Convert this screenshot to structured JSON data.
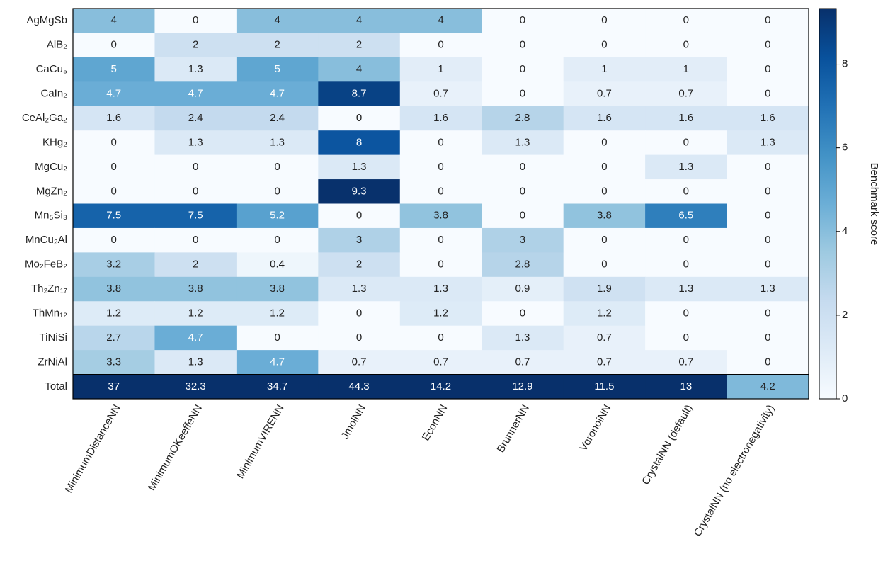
{
  "chart_data": {
    "type": "heatmap",
    "rows": [
      "AgMgSb",
      "AlB₂",
      "CaCu₅",
      "CaIn₂",
      "CeAl₂Ga₂",
      "KHg₂",
      "MgCu₂",
      "MgZn₂",
      "Mn₅Si₃",
      "MnCu₂Al",
      "Mo₂FeB₂",
      "Th₂Zn₁₇",
      "ThMn₁₂",
      "TiNiSi",
      "ZrNiAl",
      "Total"
    ],
    "columns": [
      "MinimumDistanceNN",
      "MinimumOKeeffeNN",
      "MinimumVIRENN",
      "JmolNN",
      "EconNN",
      "BrunnerNN",
      "VoronoiNN",
      "CrystalNN (default)",
      "CrystalNN (no electronegativity)"
    ],
    "values": [
      [
        4,
        0,
        4,
        4,
        4,
        0,
        0,
        0,
        0
      ],
      [
        0,
        2,
        2,
        2,
        0,
        0,
        0,
        0,
        0
      ],
      [
        5,
        1.3,
        5,
        4,
        1,
        0,
        1,
        1,
        0
      ],
      [
        4.7,
        4.7,
        4.7,
        8.7,
        0.7,
        0,
        0.7,
        0.7,
        0
      ],
      [
        1.6,
        2.4,
        2.4,
        0,
        1.6,
        2.8,
        1.6,
        1.6,
        1.6
      ],
      [
        0,
        1.3,
        1.3,
        8,
        0,
        1.3,
        0,
        0,
        1.3
      ],
      [
        0,
        0,
        0,
        1.3,
        0,
        0,
        0,
        1.3,
        0
      ],
      [
        0,
        0,
        0,
        9.3,
        0,
        0,
        0,
        0,
        0
      ],
      [
        7.5,
        7.5,
        5.2,
        0,
        3.8,
        0,
        3.8,
        6.5,
        0
      ],
      [
        0,
        0,
        0,
        3,
        0,
        3,
        0,
        0,
        0
      ],
      [
        3.2,
        2,
        0.4,
        2,
        0,
        2.8,
        0,
        0,
        0
      ],
      [
        3.8,
        3.8,
        3.8,
        1.3,
        1.3,
        0.9,
        1.9,
        1.3,
        1.3
      ],
      [
        1.2,
        1.2,
        1.2,
        0,
        1.2,
        0,
        1.2,
        0,
        0
      ],
      [
        2.7,
        4.7,
        0,
        0,
        0,
        1.3,
        0.7,
        0,
        0
      ],
      [
        3.3,
        1.3,
        4.7,
        0.7,
        0.7,
        0.7,
        0.7,
        0.7,
        0
      ],
      [
        37,
        32.3,
        34.7,
        44.3,
        14.2,
        12.9,
        11.5,
        13,
        4.2
      ]
    ],
    "colorbar_label": "Benchmark score",
    "zlim": [
      0,
      9.33
    ],
    "zticks": [
      0,
      2,
      4,
      6,
      8
    ],
    "colormap": [
      "#f7fbff",
      "#deebf7",
      "#c6dbef",
      "#9ecae1",
      "#6baed6",
      "#4292c6",
      "#2171b5",
      "#08519c",
      "#08306b"
    ]
  }
}
